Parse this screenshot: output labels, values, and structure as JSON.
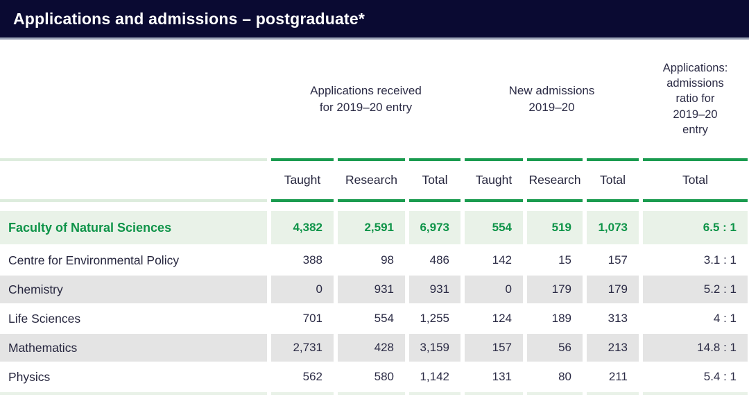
{
  "title": "Applications and admissions – postgraduate*",
  "colors": {
    "navy": "#0a0a32",
    "bar-line": "#9aa2b5",
    "green": "#1a9b4f",
    "green-text": "#0f9449",
    "pale-green": "#e9f2e8",
    "pale-line": "#ddecdd",
    "gray-row": "#e4e4e4",
    "ink": "#2b2b45"
  },
  "table": {
    "groups": [
      {
        "label": "Applications received\nfor 2019–20 entry"
      },
      {
        "label": "New admissions\n2019–20"
      },
      {
        "label": "Applications:\nadmissions\nratio for\n2019–20\nentry"
      }
    ],
    "subheaders": [
      "Taught",
      "Research",
      "Total",
      "Taught",
      "Research",
      "Total",
      "Total"
    ],
    "rows": [
      {
        "label": "Faculty of Natural Sciences",
        "values": [
          "4,382",
          "2,591",
          "6,973",
          "554",
          "519",
          "1,073",
          "6.5 : 1"
        ]
      },
      {
        "label": "Centre for Environmental Policy",
        "values": [
          "388",
          "98",
          "486",
          "142",
          "15",
          "157",
          "3.1 : 1"
        ]
      },
      {
        "label": "Chemistry",
        "values": [
          "0",
          "931",
          "931",
          "0",
          "179",
          "179",
          "5.2 : 1"
        ]
      },
      {
        "label": "Life Sciences",
        "values": [
          "701",
          "554",
          "1,255",
          "124",
          "189",
          "313",
          "4 : 1"
        ]
      },
      {
        "label": "Mathematics",
        "values": [
          "2,731",
          "428",
          "3,159",
          "157",
          "56",
          "213",
          "14.8 : 1"
        ]
      },
      {
        "label": "Physics",
        "values": [
          "562",
          "580",
          "1,142",
          "131",
          "80",
          "211",
          "5.4 : 1"
        ]
      }
    ]
  }
}
